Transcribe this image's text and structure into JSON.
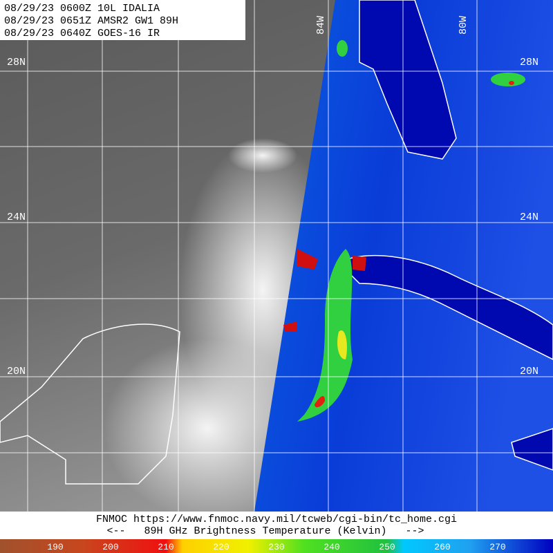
{
  "header": {
    "lines": [
      "08/29/23 0600Z  10L IDALIA",
      "08/29/23 0651Z  AMSR2 GW1 89H",
      "08/29/23 0640Z  GOES-16 IR"
    ]
  },
  "grid_labels": {
    "left_latitudes": [
      "28N",
      "24N",
      "20N"
    ],
    "right_latitudes": [
      "28N",
      "24N",
      "20N"
    ],
    "longitudes": [
      "84W",
      "80W"
    ]
  },
  "footer": {
    "source": "FNMOC https://www.fnmoc.navy.mil/tcweb/cgi-bin/tc_home.cgi",
    "legend": "<--   89H GHz Brightness Temperature (Kelvin)   -->"
  },
  "colorbar": {
    "ticks": [
      190,
      200,
      210,
      220,
      230,
      240,
      250,
      260,
      270
    ]
  }
}
